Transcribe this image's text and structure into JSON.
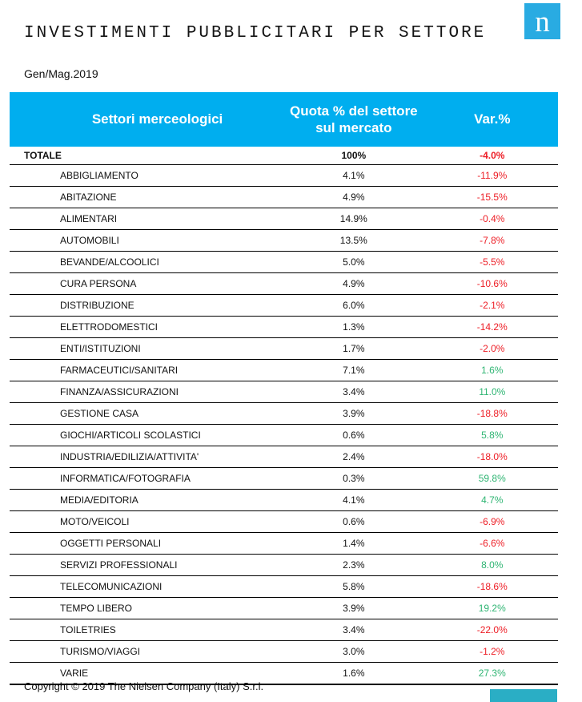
{
  "page": {
    "title": "INVESTIMENTI PUBBLICITARI PER SETTORE",
    "period": "Gen/Mag.2019",
    "copyright": "Copyright © 2019 The Nielsen Company (Italy) S.r.l.",
    "logo_letter": "n"
  },
  "colors": {
    "header_bg": "#00AEEF",
    "logo_bg": "#29ABE2",
    "negative": "#ED1C24",
    "positive": "#2FB573",
    "footer_bar": "#2AAEC5"
  },
  "table": {
    "headers": {
      "sector": "Settori merceologici",
      "quota": "Quota % del settore sul mercato",
      "variation": "Var.%"
    },
    "total_row": {
      "label": "TOTALE",
      "quota": "100%",
      "variation": "-4.0%",
      "trend": "negative"
    },
    "rows": [
      {
        "sector": "ABBIGLIAMENTO",
        "quota": "4.1%",
        "variation": "-11.9%",
        "trend": "negative"
      },
      {
        "sector": "ABITAZIONE",
        "quota": "4.9%",
        "variation": "-15.5%",
        "trend": "negative"
      },
      {
        "sector": "ALIMENTARI",
        "quota": "14.9%",
        "variation": "-0.4%",
        "trend": "negative"
      },
      {
        "sector": "AUTOMOBILI",
        "quota": "13.5%",
        "variation": "-7.8%",
        "trend": "negative"
      },
      {
        "sector": "BEVANDE/ALCOOLICI",
        "quota": "5.0%",
        "variation": "-5.5%",
        "trend": "negative"
      },
      {
        "sector": "CURA PERSONA",
        "quota": "4.9%",
        "variation": "-10.6%",
        "trend": "negative"
      },
      {
        "sector": "DISTRIBUZIONE",
        "quota": "6.0%",
        "variation": "-2.1%",
        "trend": "negative"
      },
      {
        "sector": "ELETTRODOMESTICI",
        "quota": "1.3%",
        "variation": "-14.2%",
        "trend": "negative"
      },
      {
        "sector": "ENTI/ISTITUZIONI",
        "quota": "1.7%",
        "variation": "-2.0%",
        "trend": "negative"
      },
      {
        "sector": "FARMACEUTICI/SANITARI",
        "quota": "7.1%",
        "variation": "1.6%",
        "trend": "positive"
      },
      {
        "sector": "FINANZA/ASSICURAZIONI",
        "quota": "3.4%",
        "variation": "11.0%",
        "trend": "positive"
      },
      {
        "sector": "GESTIONE CASA",
        "quota": "3.9%",
        "variation": "-18.8%",
        "trend": "negative"
      },
      {
        "sector": "GIOCHI/ARTICOLI SCOLASTICI",
        "quota": "0.6%",
        "variation": "5.8%",
        "trend": "positive"
      },
      {
        "sector": "INDUSTRIA/EDILIZIA/ATTIVITA'",
        "quota": "2.4%",
        "variation": "-18.0%",
        "trend": "negative"
      },
      {
        "sector": "INFORMATICA/FOTOGRAFIA",
        "quota": "0.3%",
        "variation": "59.8%",
        "trend": "positive"
      },
      {
        "sector": "MEDIA/EDITORIA",
        "quota": "4.1%",
        "variation": "4.7%",
        "trend": "positive"
      },
      {
        "sector": "MOTO/VEICOLI",
        "quota": "0.6%",
        "variation": "-6.9%",
        "trend": "negative"
      },
      {
        "sector": "OGGETTI PERSONALI",
        "quota": "1.4%",
        "variation": "-6.6%",
        "trend": "negative"
      },
      {
        "sector": "SERVIZI PROFESSIONALI",
        "quota": "2.3%",
        "variation": "8.0%",
        "trend": "positive"
      },
      {
        "sector": "TELECOMUNICAZIONI",
        "quota": "5.8%",
        "variation": "-18.6%",
        "trend": "negative"
      },
      {
        "sector": "TEMPO LIBERO",
        "quota": "3.9%",
        "variation": "19.2%",
        "trend": "positive"
      },
      {
        "sector": "TOILETRIES",
        "quota": "3.4%",
        "variation": "-22.0%",
        "trend": "negative"
      },
      {
        "sector": "TURISMO/VIAGGI",
        "quota": "3.0%",
        "variation": "-1.2%",
        "trend": "negative"
      },
      {
        "sector": "VARIE",
        "quota": "1.6%",
        "variation": "27.3%",
        "trend": "positive"
      }
    ]
  }
}
